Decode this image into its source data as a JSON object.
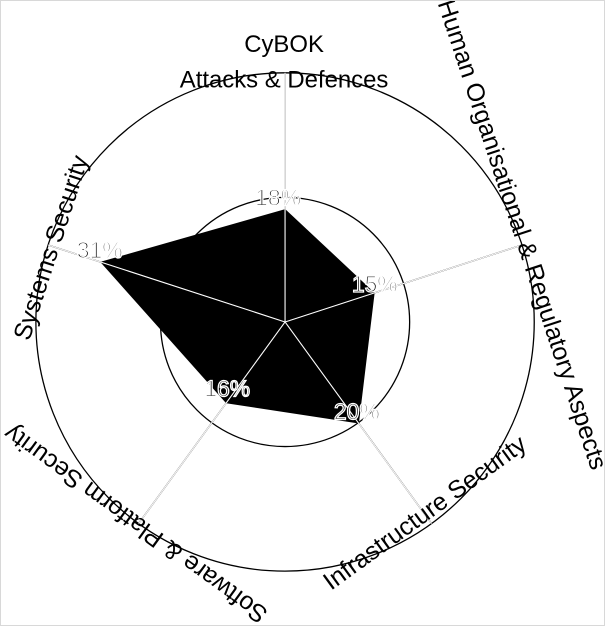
{
  "chart_data": {
    "type": "radar",
    "title": [
      "CyBOK",
      "Attacks & Defences"
    ],
    "categories": [
      "Attacks & Defences",
      "Human Organisational & Regulatory Aspects",
      "Infrastructure Security",
      "Software & Platform Security",
      "Systems Security"
    ],
    "values": [
      18,
      15,
      20,
      16,
      31
    ],
    "value_labels": [
      "18%",
      "15%",
      "20%",
      "16%",
      "31%"
    ],
    "rlim": [
      0,
      40
    ],
    "rings": [
      20,
      40
    ],
    "grid": true,
    "fill_color": "#000000",
    "line_color": "#000000"
  }
}
